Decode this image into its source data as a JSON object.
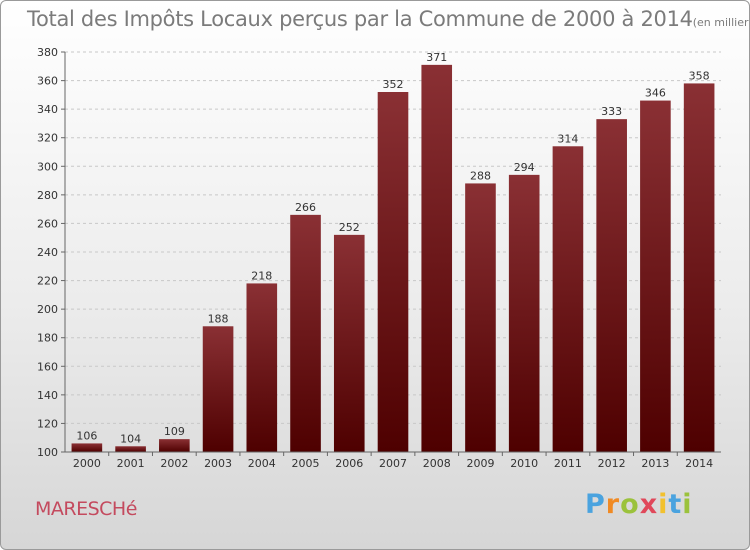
{
  "title": "Total des Impôts Locaux perçus par la Commune de 2000 à 2014",
  "title_unit": "(en milliers d'€)",
  "commune": "MARESCHé",
  "logo": "Proxiti",
  "colors": {
    "bar_top": "#8a3034",
    "bar_bottom": "#4e0000",
    "commune": "#c44a5e",
    "title": "#7b7b7b"
  },
  "chart_data": {
    "type": "bar",
    "title": "Total des Impôts Locaux perçus par la Commune de 2000 à 2014 (en milliers d'€)",
    "xlabel": "",
    "ylabel": "",
    "categories": [
      "2000",
      "2001",
      "2002",
      "2003",
      "2004",
      "2005",
      "2006",
      "2007",
      "2008",
      "2009",
      "2010",
      "2011",
      "2012",
      "2013",
      "2014"
    ],
    "values": [
      106,
      104,
      109,
      188,
      218,
      266,
      252,
      352,
      371,
      288,
      294,
      314,
      333,
      346,
      358
    ],
    "ylim": [
      100,
      380
    ],
    "yticks": [
      100,
      120,
      140,
      160,
      180,
      200,
      220,
      240,
      260,
      280,
      300,
      320,
      340,
      360,
      380
    ],
    "grid": true
  }
}
